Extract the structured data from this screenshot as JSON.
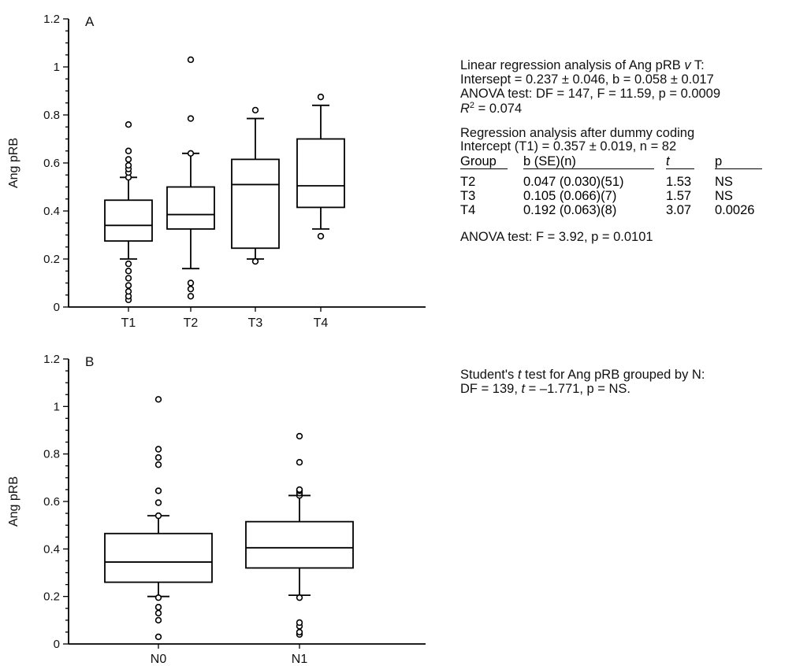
{
  "chart_data": [
    {
      "type": "box",
      "panel_label": "A",
      "ylabel": "Ang pRB",
      "ylim": [
        0,
        1.2
      ],
      "yticks": [
        "0",
        "0.2",
        "0.4",
        "0.6",
        "0.8",
        "1",
        "1.2"
      ],
      "categories": [
        "T1",
        "T2",
        "T3",
        "T4"
      ],
      "boxes": [
        {
          "category": "T1",
          "whisker_low": 0.2,
          "q1": 0.275,
          "median": 0.34,
          "q3": 0.445,
          "whisker_high": 0.54,
          "outliers": [
            0.03,
            0.045,
            0.065,
            0.09,
            0.12,
            0.15,
            0.18,
            0.54,
            0.56,
            0.575,
            0.59,
            0.615,
            0.65,
            0.76
          ]
        },
        {
          "category": "T2",
          "whisker_low": 0.16,
          "q1": 0.325,
          "median": 0.385,
          "q3": 0.5,
          "whisker_high": 0.64,
          "outliers": [
            0.045,
            0.075,
            0.1,
            0.64,
            0.785,
            1.03
          ]
        },
        {
          "category": "T3",
          "whisker_low": 0.2,
          "q1": 0.245,
          "median": 0.51,
          "q3": 0.615,
          "whisker_high": 0.785,
          "outliers": [
            0.19,
            0.82
          ]
        },
        {
          "category": "T4",
          "whisker_low": 0.325,
          "q1": 0.415,
          "median": 0.505,
          "q3": 0.7,
          "whisker_high": 0.84,
          "outliers": [
            0.295,
            0.875
          ]
        }
      ]
    },
    {
      "type": "box",
      "panel_label": "B",
      "ylabel": "Ang pRB",
      "ylim": [
        0,
        1.2
      ],
      "yticks": [
        "0",
        "0.2",
        "0.4",
        "0.6",
        "0.8",
        "1",
        "1.2"
      ],
      "categories": [
        "N0",
        "N1"
      ],
      "boxes": [
        {
          "category": "N0",
          "whisker_low": 0.2,
          "q1": 0.26,
          "median": 0.345,
          "q3": 0.465,
          "whisker_high": 0.54,
          "outliers": [
            0.03,
            0.1,
            0.13,
            0.155,
            0.195,
            0.54,
            0.595,
            0.645,
            0.755,
            0.785,
            0.82,
            1.03
          ]
        },
        {
          "category": "N1",
          "whisker_low": 0.205,
          "q1": 0.32,
          "median": 0.405,
          "q3": 0.515,
          "whisker_high": 0.625,
          "outliers": [
            0.04,
            0.05,
            0.075,
            0.09,
            0.195,
            0.625,
            0.635,
            0.645,
            0.65,
            0.765,
            0.875
          ]
        }
      ]
    }
  ],
  "annotations": {
    "panel_a": {
      "regression_title_pre": "Linear regression analysis of Ang pRB ",
      "regression_title_v": "v",
      "regression_title_post": " T:",
      "intersept_line": "Intersept = 0.237 ± 0.046, b = 0.058 ± 0.017",
      "anova_line1": "ANOVA test: DF = 147, F = 11.59, p = 0.0009",
      "r2_symbol": "R",
      "r2_exp": "2",
      "r2_value": " = 0.074",
      "dummy_title": "Regression analysis after dummy coding",
      "intercept_line": "Intercept (T1) = 0.357 ± 0.019, n = 82",
      "table_headers": [
        "Group",
        "b (SE)(n)",
        "t",
        "p"
      ],
      "table_rows": [
        [
          "T2",
          "0.047 (0.030)(51)",
          "1.53",
          "NS"
        ],
        [
          "T3",
          "0.105 (0.066)(7)",
          "1.57",
          "NS"
        ],
        [
          "T4",
          "0.192 (0.063)(8)",
          "3.07",
          "0.0026"
        ]
      ],
      "anova_line2": "ANOVA test: F = 3.92, p = 0.0101"
    },
    "panel_b": {
      "ttest_line1_pre": "Student's ",
      "ttest_line1_t": "t",
      "ttest_line1_post": " test for Ang pRB grouped by N:",
      "ttest_line2_pre": "DF = 139, ",
      "ttest_line2_t": "t",
      "ttest_line2_post": " = –1.771, p = NS."
    }
  }
}
